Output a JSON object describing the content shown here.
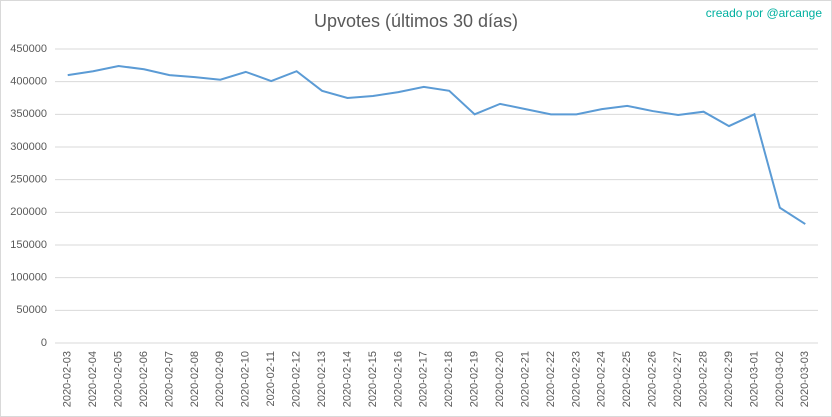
{
  "chart_data": {
    "type": "line",
    "title": "Upvotes (últimos 30 días)",
    "credit": "creado por @arcange",
    "categories": [
      "2020-02-03",
      "2020-02-04",
      "2020-02-05",
      "2020-02-06",
      "2020-02-07",
      "2020-02-08",
      "2020-02-09",
      "2020-02-10",
      "2020-02-11",
      "2020-02-12",
      "2020-02-13",
      "2020-02-14",
      "2020-02-15",
      "2020-02-16",
      "2020-02-17",
      "2020-02-18",
      "2020-02-19",
      "2020-02-20",
      "2020-02-21",
      "2020-02-22",
      "2020-02-23",
      "2020-02-24",
      "2020-02-25",
      "2020-02-26",
      "2020-02-27",
      "2020-02-28",
      "2020-02-29",
      "2020-03-01",
      "2020-03-02",
      "2020-03-03"
    ],
    "values": [
      410000,
      416000,
      424000,
      419000,
      410000,
      407000,
      403000,
      415000,
      401000,
      416000,
      386000,
      375000,
      378000,
      384000,
      392000,
      386000,
      350000,
      366000,
      358000,
      350000,
      350000,
      358000,
      363000,
      355000,
      349000,
      354000,
      332000,
      350000,
      207000,
      182000
    ],
    "color": "#5b9bd5",
    "ylim": [
      0,
      450000
    ],
    "yticks": [
      0,
      50000,
      100000,
      150000,
      200000,
      250000,
      300000,
      350000,
      400000,
      450000
    ],
    "grid": true
  }
}
